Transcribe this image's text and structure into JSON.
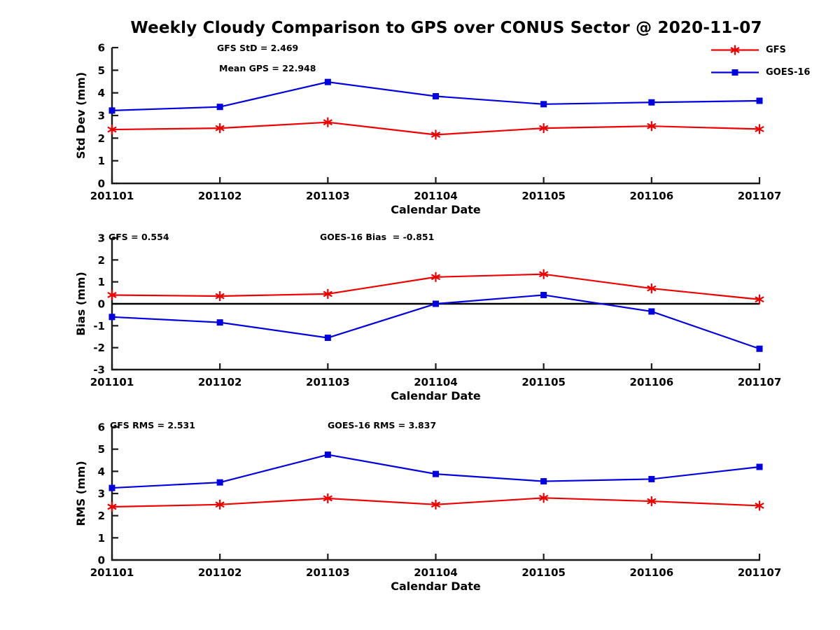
{
  "title": "Weekly Cloudy Comparison to GPS over CONUS Sector @ 2020-11-07",
  "colors": {
    "gfs": "#ee0000",
    "goes16": "#0000e0",
    "axis": "#1a1a1a",
    "text": "#000000",
    "zero_line": "#000000"
  },
  "legend": [
    {
      "label": "GFS",
      "marker": "star",
      "color_key": "gfs"
    },
    {
      "label": "GOES-16",
      "marker": "square",
      "color_key": "goes16"
    }
  ],
  "chart_data": [
    {
      "id": "stddev",
      "type": "line",
      "ylabel": "Std Dev (mm)",
      "xlabel": "Calendar Date",
      "categories": [
        "201101",
        "201102",
        "201103",
        "201104",
        "201105",
        "201106",
        "201107"
      ],
      "ylim": [
        0,
        6
      ],
      "yticks": [
        0,
        1,
        2,
        3,
        4,
        5,
        6
      ],
      "grid": false,
      "zero_line": false,
      "annotations": [
        {
          "text": "GFS StD = 2.469",
          "x": 310,
          "y": 18
        },
        {
          "text": "Mean GPS = 22.948",
          "x": 313,
          "y": 47
        }
      ],
      "series": [
        {
          "name": "GFS",
          "color_key": "gfs",
          "marker": "star",
          "values": [
            2.38,
            2.44,
            2.7,
            2.15,
            2.44,
            2.53,
            2.4
          ]
        },
        {
          "name": "GOES-16",
          "color_key": "goes16",
          "marker": "square",
          "values": [
            3.22,
            3.38,
            4.48,
            3.85,
            3.5,
            3.58,
            3.65
          ]
        }
      ]
    },
    {
      "id": "bias",
      "type": "line",
      "ylabel": "Bias (mm)",
      "xlabel": "Calendar Date",
      "categories": [
        "201101",
        "201102",
        "201103",
        "201104",
        "201105",
        "201106",
        "201107"
      ],
      "ylim": [
        -3,
        3
      ],
      "yticks": [
        -3,
        -2,
        -1,
        0,
        1,
        2,
        3
      ],
      "grid": false,
      "zero_line": true,
      "annotations": [
        {
          "text": "GFS = 0.554",
          "x": 155,
          "y": 18
        },
        {
          "text": "GOES-16 Bias  = -0.851",
          "x": 457,
          "y": 18
        }
      ],
      "series": [
        {
          "name": "GFS",
          "color_key": "gfs",
          "marker": "star",
          "values": [
            0.4,
            0.35,
            0.45,
            1.22,
            1.35,
            0.7,
            0.2
          ]
        },
        {
          "name": "GOES-16",
          "color_key": "goes16",
          "marker": "square",
          "values": [
            -0.6,
            -0.85,
            -1.55,
            0.0,
            0.4,
            -0.35,
            -2.05
          ]
        }
      ]
    },
    {
      "id": "rms",
      "type": "line",
      "ylabel": "RMS (mm)",
      "xlabel": "Calendar Date",
      "categories": [
        "201101",
        "201102",
        "201103",
        "201104",
        "201105",
        "201106",
        "201107"
      ],
      "ylim": [
        0,
        6
      ],
      "yticks": [
        0,
        1,
        2,
        3,
        4,
        5,
        6
      ],
      "grid": false,
      "zero_line": false,
      "annotations": [
        {
          "text": "GFS RMS = 2.531",
          "x": 157,
          "y": 17
        },
        {
          "text": "GOES-16 RMS = 3.837",
          "x": 468,
          "y": 17
        }
      ],
      "series": [
        {
          "name": "GFS",
          "color_key": "gfs",
          "marker": "star",
          "values": [
            2.4,
            2.5,
            2.78,
            2.5,
            2.8,
            2.65,
            2.45
          ]
        },
        {
          "name": "GOES-16",
          "color_key": "goes16",
          "marker": "square",
          "values": [
            3.25,
            3.5,
            4.75,
            3.88,
            3.55,
            3.65,
            4.2
          ]
        }
      ]
    }
  ]
}
